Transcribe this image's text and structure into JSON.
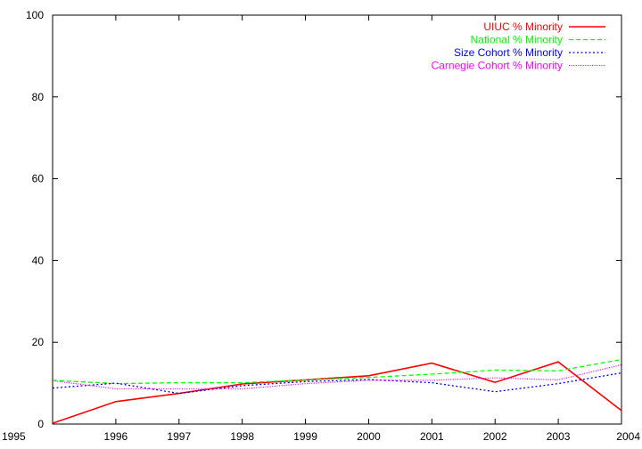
{
  "chart_data": {
    "type": "line",
    "x": [
      1995,
      1996,
      1997,
      1998,
      1999,
      2000,
      2001,
      2002,
      2003,
      2004
    ],
    "xlim": [
      1995,
      2004
    ],
    "ylim": [
      0,
      100
    ],
    "yticks": [
      0,
      20,
      40,
      60,
      80,
      100
    ],
    "xticks": [
      1995,
      1996,
      1997,
      1998,
      1999,
      2000,
      2001,
      2002,
      2003,
      2004
    ],
    "grid": false,
    "legend_position": "top-right",
    "series": [
      {
        "name": "UIUC % Minority",
        "color": "#ff0000",
        "dash": "solid",
        "values": [
          0.2,
          5.5,
          7.5,
          9.8,
          10.8,
          11.8,
          14.9,
          10.2,
          15.2,
          3.3
        ]
      },
      {
        "name": "National % Minority",
        "color": "#00ff00",
        "dash": "dashed",
        "values": [
          10.7,
          9.9,
          10.1,
          10.1,
          10.8,
          11.4,
          12.2,
          13.2,
          13.0,
          15.8
        ]
      },
      {
        "name": "Size Cohort % Minority",
        "color": "#0000ff",
        "dash": "dotted",
        "values": [
          8.8,
          10.0,
          7.5,
          9.4,
          10.4,
          10.9,
          10.1,
          7.9,
          9.9,
          12.5
        ]
      },
      {
        "name": "Carnegie Cohort % Minority",
        "color": "#ff00ff",
        "dash": "fine-dotted",
        "values": [
          10.6,
          8.6,
          8.6,
          8.6,
          9.9,
          10.7,
          10.7,
          11.3,
          10.8,
          14.5
        ]
      }
    ]
  }
}
